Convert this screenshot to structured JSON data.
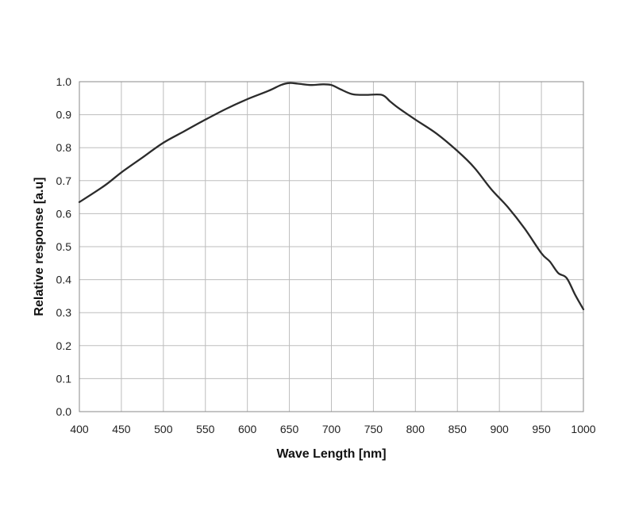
{
  "chart_data": {
    "type": "line",
    "title": "",
    "xlabel": "Wave Length [nm]",
    "ylabel": "Relative response [a.u]",
    "xlim": [
      400,
      1000
    ],
    "ylim": [
      0,
      1.0
    ],
    "grid": true,
    "x_ticks": [
      "400",
      "450",
      "500",
      "550",
      "600",
      "650",
      "700",
      "750",
      "800",
      "850",
      "900",
      "950",
      "1000"
    ],
    "y_ticks": [
      "0.0",
      "0.1",
      "0.2",
      "0.3",
      "0.4",
      "0.5",
      "0.6",
      "0.7",
      "0.8",
      "0.9",
      "1.0"
    ],
    "line_color": "#2b2b2b",
    "series": [
      {
        "x": [
          400,
          430,
          450,
          475,
          500,
          525,
          550,
          575,
          600,
          625,
          640,
          650,
          660,
          675,
          690,
          700,
          710,
          725,
          740,
          760,
          770,
          780,
          800,
          825,
          850,
          870,
          890,
          910,
          930,
          950,
          960,
          970,
          980,
          990,
          1000
        ],
        "y": [
          0.635,
          0.685,
          0.725,
          0.77,
          0.815,
          0.85,
          0.885,
          0.918,
          0.947,
          0.972,
          0.99,
          0.996,
          0.994,
          0.99,
          0.992,
          0.99,
          0.978,
          0.962,
          0.96,
          0.96,
          0.94,
          0.92,
          0.885,
          0.843,
          0.79,
          0.74,
          0.675,
          0.62,
          0.555,
          0.48,
          0.455,
          0.42,
          0.405,
          0.355,
          0.31
        ]
      }
    ]
  }
}
